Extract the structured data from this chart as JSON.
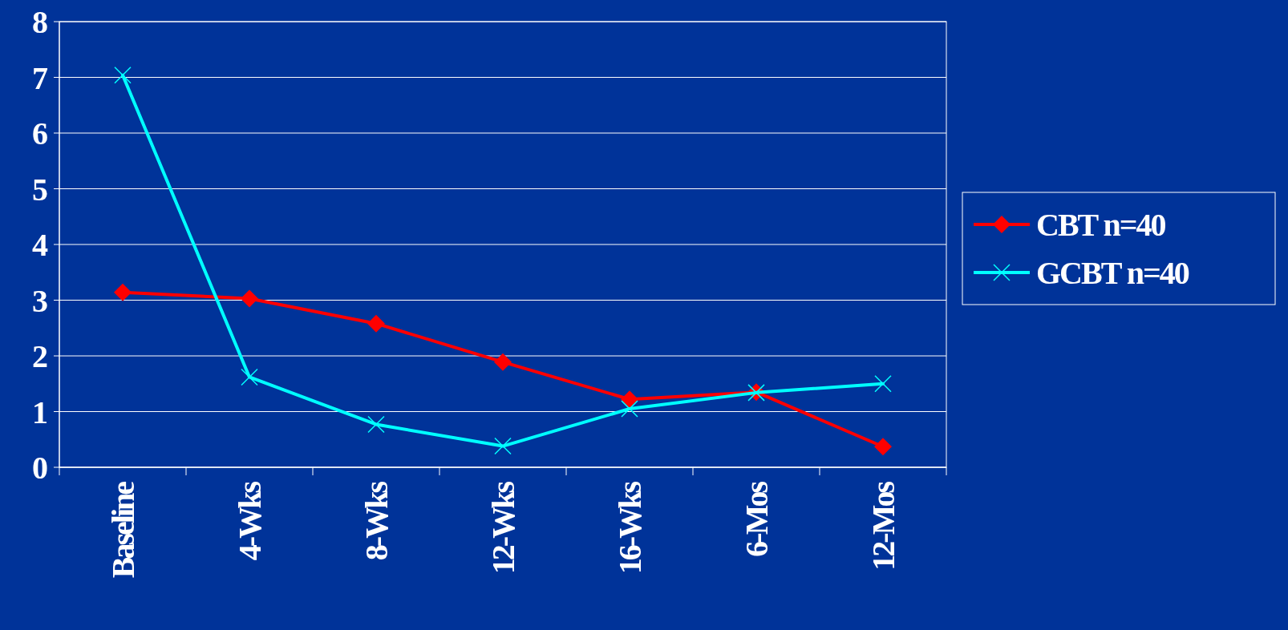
{
  "chart_data": {
    "type": "line",
    "categories": [
      "Baseline",
      "4-Wks",
      "8-Wks",
      "12-Wks",
      "16-Wks",
      "6-Mos",
      "12-Mos"
    ],
    "series": [
      {
        "name": "CBT  n=40",
        "color": "#ff0000",
        "marker": "diamond",
        "values": [
          3.14,
          3.03,
          2.58,
          1.89,
          1.22,
          1.35,
          0.37
        ]
      },
      {
        "name": "GCBT  n=40",
        "color": "#00ffff",
        "marker": "cross",
        "values": [
          7.04,
          1.62,
          0.77,
          0.38,
          1.05,
          1.34,
          1.5
        ]
      }
    ],
    "ylim": [
      0,
      8
    ],
    "yticks": [
      0,
      1,
      2,
      3,
      4,
      5,
      6,
      7,
      8
    ],
    "grid": "y",
    "legend": "right"
  }
}
